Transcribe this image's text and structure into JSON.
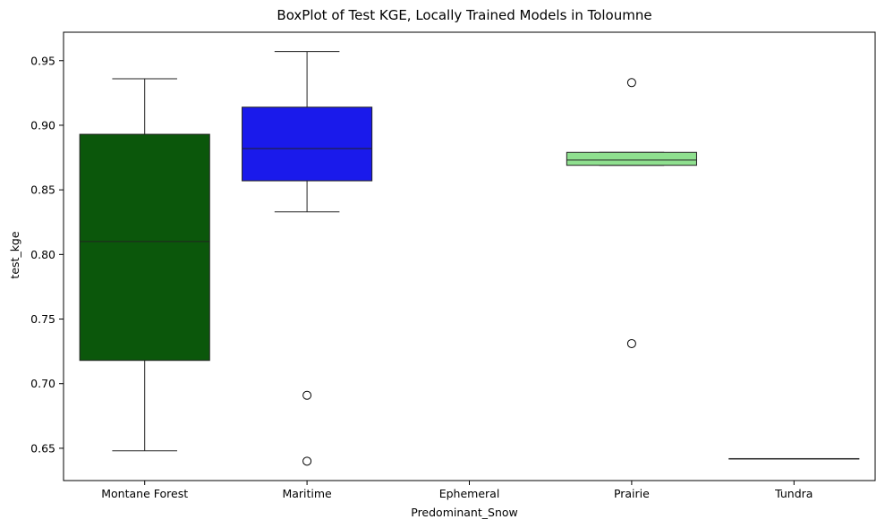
{
  "chart_data": {
    "type": "box",
    "title": "BoxPlot of Test KGE, Locally Trained Models in Toloumne",
    "xlabel": "Predominant_Snow",
    "ylabel": "test_kge",
    "categories": [
      "Montane Forest",
      "Maritime",
      "Ephemeral",
      "Prairie",
      "Tundra"
    ],
    "ylim": [
      0.625,
      0.972
    ],
    "yticks": [
      0.65,
      0.7,
      0.75,
      0.8,
      0.85,
      0.9,
      0.95
    ],
    "ytick_labels": [
      "0.65",
      "0.70",
      "0.75",
      "0.80",
      "0.85",
      "0.90",
      "0.95"
    ],
    "boxes": [
      {
        "category": "Montane Forest",
        "whislo": 0.648,
        "q1": 0.718,
        "med": 0.81,
        "q3": 0.893,
        "whishi": 0.936,
        "fliers": [],
        "color": "#0b570b"
      },
      {
        "category": "Maritime",
        "whislo": 0.833,
        "q1": 0.857,
        "med": 0.882,
        "q3": 0.914,
        "whishi": 0.957,
        "fliers": [
          0.691,
          0.64
        ],
        "color": "#1a1aeb"
      },
      {
        "category": "Ephemeral",
        "empty": true
      },
      {
        "category": "Prairie",
        "whislo": 0.869,
        "q1": 0.869,
        "med": 0.873,
        "q3": 0.879,
        "whishi": 0.879,
        "fliers": [
          0.933,
          0.731
        ],
        "color": "#8fe08f"
      },
      {
        "category": "Tundra",
        "whislo": 0.642,
        "q1": 0.642,
        "med": 0.642,
        "q3": 0.642,
        "whishi": 0.642,
        "fliers": [],
        "color": "#aaaaaa"
      }
    ],
    "grid": false,
    "legend": "none"
  }
}
